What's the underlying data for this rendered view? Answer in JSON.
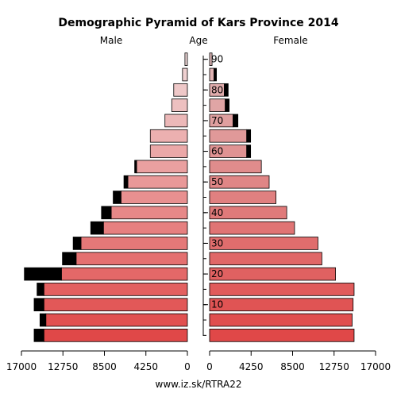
{
  "chart_data": {
    "type": "bar",
    "title": "Demographic Pyramid of Kars Province 2014",
    "left_header": "Male",
    "center_header": "Age",
    "right_header": "Female",
    "source": "www.iz.sk/RTRA22",
    "age_ticks": [
      "90",
      "80",
      "70",
      "60",
      "50",
      "40",
      "30",
      "20",
      "10"
    ],
    "x_ticks_male": [
      "17000",
      "12750",
      "8500",
      "4250",
      "0"
    ],
    "x_ticks_female": [
      "0",
      "4250",
      "8500",
      "12750",
      "17000"
    ],
    "xlim": [
      0,
      17000
    ],
    "grid": false,
    "age_groups": [
      "0-4",
      "5-9",
      "10-14",
      "15-19",
      "20-24",
      "25-29",
      "30-34",
      "35-39",
      "40-44",
      "45-49",
      "50-54",
      "55-59",
      "60-64",
      "65-69",
      "70-74",
      "75-79",
      "80-84",
      "85-89",
      "90+"
    ],
    "male_base": [
      14700,
      14500,
      14700,
      14700,
      12900,
      11400,
      10900,
      8600,
      7800,
      6800,
      6100,
      5200,
      3800,
      3800,
      2300,
      1600,
      1400,
      500,
      250
    ],
    "male_excess": [
      1000,
      600,
      1000,
      700,
      3800,
      1400,
      800,
      1300,
      1000,
      800,
      400,
      200,
      0,
      0,
      0,
      0,
      0,
      0,
      0
    ],
    "female_base": [
      14800,
      14600,
      14700,
      14800,
      12900,
      11500,
      11100,
      8700,
      7900,
      6800,
      6100,
      5300,
      3800,
      3800,
      2400,
      1600,
      1500,
      450,
      250
    ],
    "female_excess": [
      0,
      0,
      0,
      0,
      0,
      0,
      0,
      0,
      0,
      0,
      0,
      0,
      400,
      400,
      500,
      400,
      400,
      250,
      0
    ],
    "colors": {
      "male_gradient_start": "#e04848",
      "male_gradient_end": "#f0d8d8",
      "female_gradient_start": "#e04848",
      "female_gradient_end": "#e0b8b8",
      "excess": "#000000"
    }
  }
}
